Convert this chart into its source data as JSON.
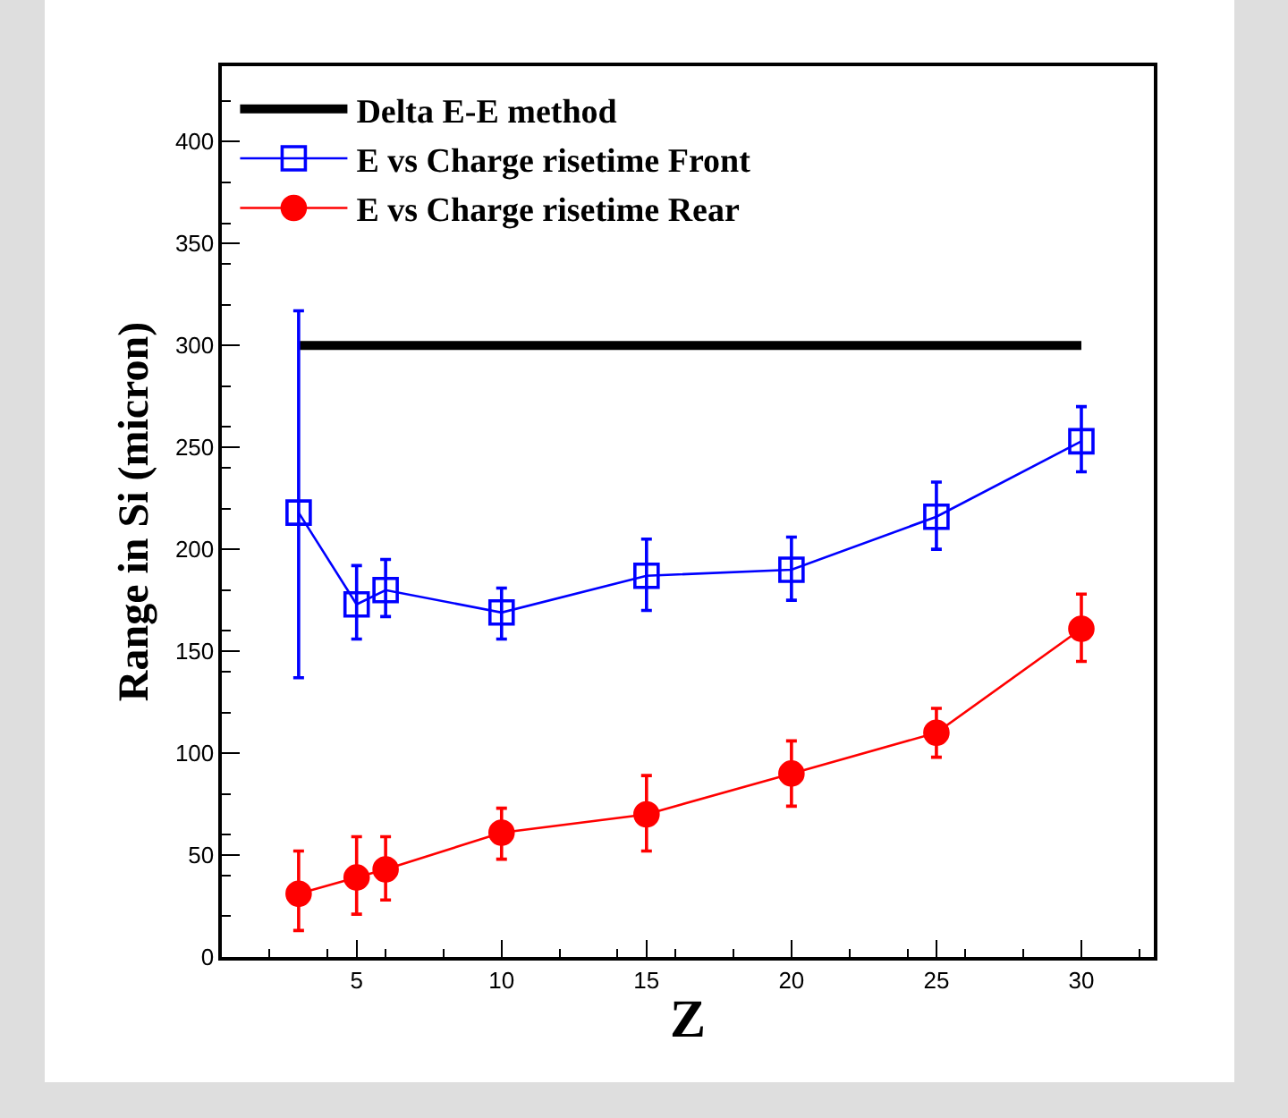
{
  "chart_data": {
    "type": "line",
    "xlabel": "Z",
    "ylabel": "Range in Si (micron)",
    "xlim": [
      0.35,
      32.5
    ],
    "xticks": [
      5,
      10,
      15,
      20,
      25,
      30
    ],
    "ylim": [
      0,
      437
    ],
    "yticks": [
      0,
      50,
      100,
      150,
      200,
      250,
      300,
      350,
      400
    ],
    "legend": "top left",
    "grid": false,
    "series": [
      {
        "name": "Delta E-E method",
        "color": "#000000",
        "marker": "none",
        "x": [
          3,
          30
        ],
        "values": [
          300,
          300
        ]
      },
      {
        "name": "E vs Charge risetime Front",
        "color": "#0000ff",
        "marker": "square",
        "x": [
          3,
          5,
          6,
          10,
          15,
          20,
          25,
          30
        ],
        "values": [
          218,
          173,
          180,
          169,
          187,
          190,
          216,
          253
        ],
        "errors": [
          [
            137,
            317
          ],
          [
            156,
            192
          ],
          [
            167,
            195
          ],
          [
            156,
            181
          ],
          [
            170,
            205
          ],
          [
            175,
            206
          ],
          [
            200,
            233
          ],
          [
            238,
            270
          ]
        ]
      },
      {
        "name": "E vs Charge risetime Rear",
        "color": "#ff0000",
        "marker": "circle",
        "x": [
          3,
          5,
          6,
          10,
          15,
          20,
          25,
          30
        ],
        "values": [
          31,
          39,
          43,
          61,
          70,
          90,
          110,
          161
        ],
        "errors": [
          [
            13,
            52
          ],
          [
            21,
            59
          ],
          [
            28,
            59
          ],
          [
            48,
            73
          ],
          [
            52,
            89
          ],
          [
            74,
            106
          ],
          [
            98,
            122
          ],
          [
            145,
            178
          ]
        ]
      }
    ]
  }
}
